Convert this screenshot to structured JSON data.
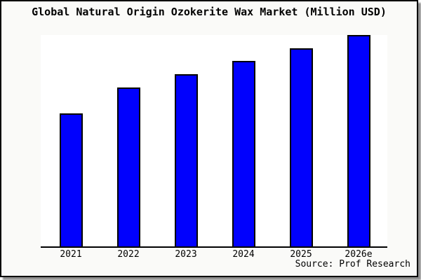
{
  "title": "Global Natural Origin Ozokerite Wax Market (Million USD)",
  "source_credit": "Source: Prof Research",
  "card": {
    "background": "#fafaf8",
    "border_color": "#000000",
    "shadow_color": "#8f8f8f"
  },
  "chart_data": {
    "type": "bar",
    "title": "Global Natural Origin Ozokerite Wax Market (Million USD)",
    "categories": [
      "2021",
      "2022",
      "2023",
      "2024",
      "2025",
      "2026e"
    ],
    "values": [
      62.9,
      75.2,
      81.5,
      87.7,
      93.7,
      100
    ],
    "value_note": "no y-axis shown; bar heights estimated relative to 2026e = 100",
    "xlabel": "",
    "ylabel": "",
    "ylim": [
      0,
      100
    ],
    "grid": false,
    "legend": false,
    "bar_color": "#0101fd",
    "bar_border_color": "#000000",
    "plot_background": "#ffffff",
    "axis_line_color": "#000000",
    "annotation": "Source: Prof Research"
  }
}
